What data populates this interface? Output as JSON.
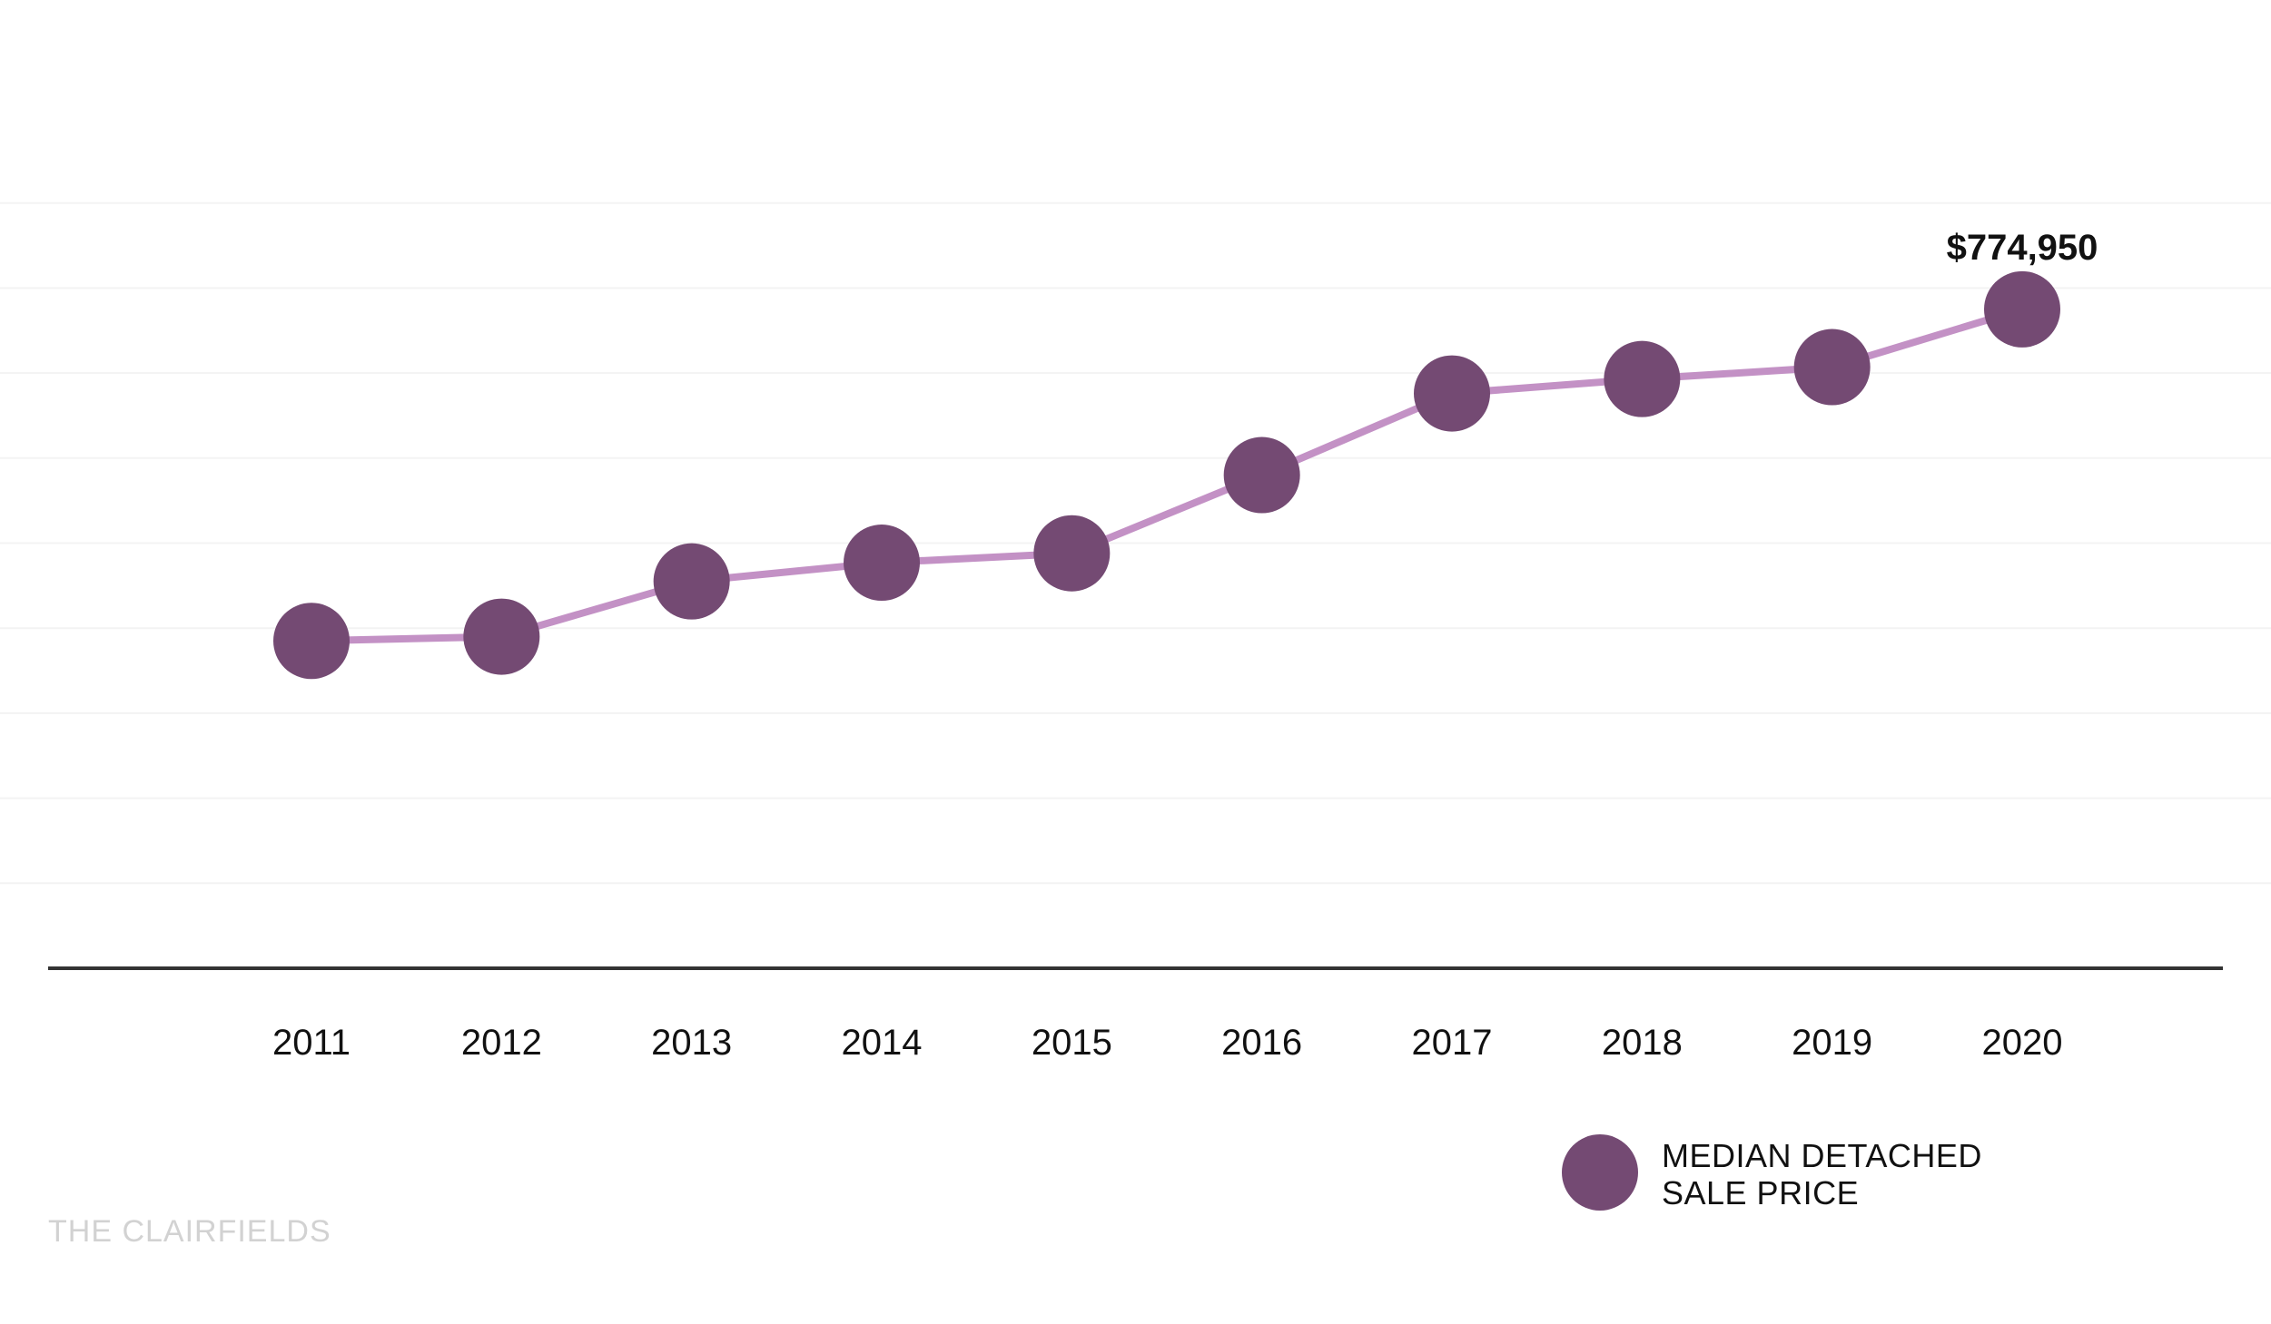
{
  "chart_data": {
    "type": "line",
    "categories": [
      "2011",
      "2012",
      "2013",
      "2014",
      "2015",
      "2016",
      "2017",
      "2018",
      "2019",
      "2020"
    ],
    "series": [
      {
        "name": "MEDIAN DETACHED SALE PRICE",
        "values": [
          385000,
          390000,
          455000,
          477000,
          488000,
          580000,
          676000,
          693000,
          707000,
          774950
        ]
      }
    ],
    "data_labels": [
      {
        "category": "2020",
        "text": "$774,950"
      }
    ],
    "ylim": [
      0,
      1000000
    ],
    "gridlines": [
      100000,
      200000,
      300000,
      400000,
      500000,
      600000,
      700000,
      800000,
      900000
    ],
    "grid": true,
    "legend": {
      "position": "bottom-right",
      "lines": [
        "MEDIAN DETACHED",
        "SALE PRICE"
      ]
    },
    "colors": {
      "line": "#c391c5",
      "marker": "#744a73",
      "gridline": "#f3f3f3",
      "axis": "#333333"
    }
  },
  "watermark": "THE CLAIRFIELDS"
}
